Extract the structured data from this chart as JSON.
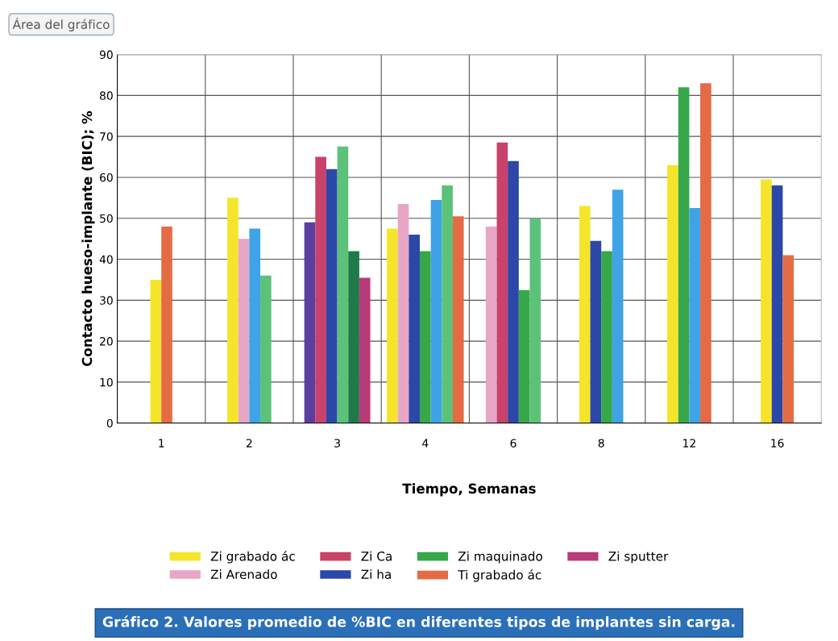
{
  "chart_data": {
    "type": "bar",
    "categories": [
      "1",
      "2",
      "3",
      "4",
      "6",
      "8",
      "12",
      "16"
    ],
    "xlabel": "Tiempo, Semanas",
    "ylabel": "Contacto hueso-implante (BIC); %",
    "ylim": [
      0,
      90
    ],
    "yticks": [
      0,
      10,
      20,
      30,
      40,
      50,
      60,
      70,
      80,
      90
    ],
    "grid": true,
    "legend": "bottom",
    "annotations": [
      "Área del gráfico",
      "Gráfico 2. Valores promedio de %BIC en diferentes tipos de implantes sin carga."
    ],
    "series": [
      {
        "name": "Zi grabado ác",
        "color": "#f5e52a",
        "values": [
          35,
          55,
          null,
          47.5,
          null,
          53,
          63,
          59.5
        ]
      },
      {
        "name": "Zi Arenado",
        "color": "#e8a6c6",
        "values": [
          null,
          45,
          null,
          53.5,
          48,
          null,
          null,
          null
        ]
      },
      {
        "color": "#5b3fa0",
        "values": [
          null,
          null,
          49,
          null,
          null,
          null,
          null,
          null
        ]
      },
      {
        "name": "Zi Ca",
        "color": "#c8426a",
        "values": [
          null,
          null,
          65,
          null,
          68.5,
          null,
          null,
          null
        ]
      },
      {
        "name": "Zi ha",
        "color": "#2b47a8",
        "values": [
          null,
          null,
          62,
          46,
          64,
          44.5,
          null,
          58
        ]
      },
      {
        "name": "Zi maquinado",
        "color": "#36a84a",
        "values": [
          null,
          null,
          null,
          42,
          32.5,
          42,
          82,
          null
        ]
      },
      {
        "color": "#3fa3e8",
        "values": [
          null,
          47.5,
          null,
          54.5,
          null,
          57,
          52.5,
          null
        ]
      },
      {
        "color": "#5cc27a",
        "values": [
          null,
          36,
          67.5,
          58,
          50,
          null,
          null,
          null
        ]
      },
      {
        "name": "Ti grabado ác",
        "color": "#e46c45",
        "values": [
          48,
          null,
          null,
          50.5,
          null,
          null,
          83,
          41
        ]
      },
      {
        "color": "#1f7a4a",
        "values": [
          null,
          null,
          42,
          null,
          null,
          null,
          null,
          null
        ]
      },
      {
        "name": "Zi sputter",
        "color": "#b83a78",
        "values": [
          null,
          null,
          35.5,
          null,
          null,
          null,
          null,
          null
        ]
      }
    ]
  }
}
